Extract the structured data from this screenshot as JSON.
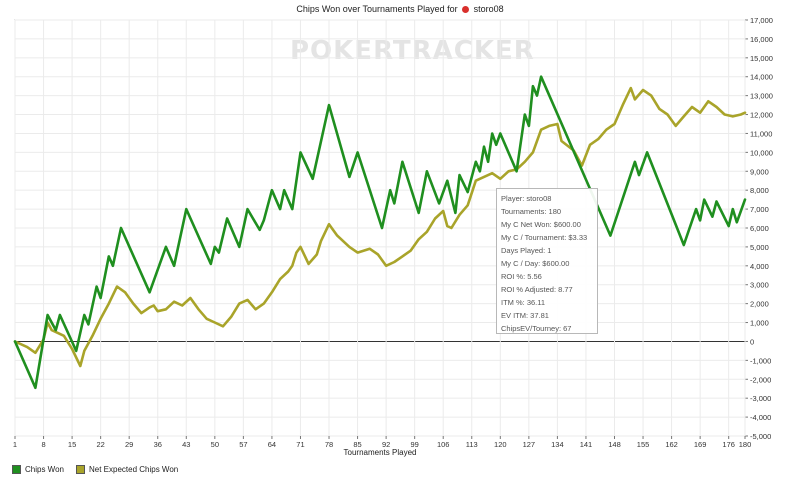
{
  "title": {
    "prefix": "Chips Won over Tournaments Played for",
    "player": "storo08",
    "player_icon": "poker-chip-icon"
  },
  "watermark": "POKERTRACKER",
  "colors": {
    "chips_won": "#1f8f1f",
    "net_expected": "#a9a42a",
    "grid": "#ebebeb",
    "zero_line": "#333333"
  },
  "tooltip": {
    "rows": [
      "Player: storo08",
      "Tournaments: 180",
      "My C Net Won: $600.00",
      "My C / Tournament: $3.33",
      "Days Played: 1",
      "My C / Day: $600.00",
      "ROI %: 5.56",
      "ROI % Adjusted: 8.77",
      "ITM %: 36.11",
      "EV ITM: 37.81",
      "ChipsEV/Tourney: 67"
    ]
  },
  "legend": [
    {
      "label": "Chips Won",
      "color": "#1f8f1f"
    },
    {
      "label": "Net Expected Chips Won",
      "color": "#a9a42a"
    }
  ],
  "chart_data": {
    "type": "line",
    "title": "Chips Won over Tournaments Played for storo08",
    "xlabel": "Tournaments Played",
    "ylabel": "",
    "xlim": [
      1,
      180
    ],
    "ylim": [
      -5000,
      17000
    ],
    "x_ticks": [
      1,
      8,
      15,
      22,
      29,
      36,
      43,
      50,
      57,
      64,
      71,
      78,
      85,
      92,
      99,
      106,
      113,
      120,
      127,
      134,
      141,
      148,
      155,
      162,
      169,
      176,
      180
    ],
    "y_ticks": [
      {
        "value": 17000,
        "label": "17,000"
      },
      {
        "value": 16000,
        "label": "16,000"
      },
      {
        "value": 15000,
        "label": "15,000"
      },
      {
        "value": 14000,
        "label": "14,000"
      },
      {
        "value": 13000,
        "label": "13,000"
      },
      {
        "value": 12000,
        "label": "12,000"
      },
      {
        "value": 11000,
        "label": "11,000"
      },
      {
        "value": 10000,
        "label": "10,000"
      },
      {
        "value": 9000,
        "label": "9,000"
      },
      {
        "value": 8000,
        "label": "8,000"
      },
      {
        "value": 7000,
        "label": "7,000"
      },
      {
        "value": 6000,
        "label": "6,000"
      },
      {
        "value": 5000,
        "label": "5,000"
      },
      {
        "value": 4000,
        "label": "4,000"
      },
      {
        "value": 3000,
        "label": "3,000"
      },
      {
        "value": 2000,
        "label": "2,000"
      },
      {
        "value": 1000,
        "label": "1,000"
      },
      {
        "value": 0,
        "label": "0"
      },
      {
        "value": -1000,
        "label": "-1,000"
      },
      {
        "value": -2000,
        "label": "-2,000"
      },
      {
        "value": -3000,
        "label": "-3,000"
      },
      {
        "value": -4000,
        "label": "-4,000"
      },
      {
        "value": -5000,
        "label": "-5,000"
      }
    ],
    "grid": true,
    "legend_position": "bottom-left",
    "series": [
      {
        "name": "Chips Won",
        "color": "#1f8f1f",
        "points": [
          [
            1,
            0
          ],
          [
            6,
            -2450
          ],
          [
            9,
            1400
          ],
          [
            11,
            600
          ],
          [
            12,
            1400
          ],
          [
            16,
            -500
          ],
          [
            18,
            1400
          ],
          [
            19,
            900
          ],
          [
            21,
            2900
          ],
          [
            22,
            2300
          ],
          [
            24,
            4500
          ],
          [
            25,
            4000
          ],
          [
            27,
            6000
          ],
          [
            34,
            2600
          ],
          [
            38,
            5000
          ],
          [
            40,
            4000
          ],
          [
            43,
            7000
          ],
          [
            49,
            4100
          ],
          [
            50,
            5000
          ],
          [
            51,
            4700
          ],
          [
            53,
            6500
          ],
          [
            56,
            5000
          ],
          [
            58,
            7000
          ],
          [
            61,
            5900
          ],
          [
            62,
            6400
          ],
          [
            64,
            8000
          ],
          [
            66,
            7000
          ],
          [
            67,
            8000
          ],
          [
            69,
            7000
          ],
          [
            71,
            10000
          ],
          [
            74,
            8600
          ],
          [
            78,
            12500
          ],
          [
            83,
            8700
          ],
          [
            85,
            10000
          ],
          [
            91,
            6000
          ],
          [
            93,
            8000
          ],
          [
            94,
            7300
          ],
          [
            96,
            9500
          ],
          [
            100,
            6800
          ],
          [
            102,
            9000
          ],
          [
            105,
            7300
          ],
          [
            107,
            8500
          ],
          [
            109,
            6800
          ],
          [
            110,
            8800
          ],
          [
            112,
            7900
          ],
          [
            114,
            9500
          ],
          [
            115,
            9000
          ],
          [
            116,
            10300
          ],
          [
            117,
            9500
          ],
          [
            118,
            11000
          ],
          [
            119,
            10400
          ],
          [
            120,
            11000
          ],
          [
            124,
            9000
          ],
          [
            126,
            12000
          ],
          [
            127,
            11400
          ],
          [
            128,
            13500
          ],
          [
            129,
            13000
          ],
          [
            130,
            14000
          ],
          [
            147,
            5600
          ],
          [
            153,
            9500
          ],
          [
            154,
            8800
          ],
          [
            156,
            10000
          ],
          [
            165,
            5100
          ],
          [
            168,
            7000
          ],
          [
            169,
            6400
          ],
          [
            170,
            7500
          ],
          [
            172,
            6600
          ],
          [
            173,
            7400
          ],
          [
            176,
            6100
          ],
          [
            177,
            7000
          ],
          [
            178,
            6300
          ],
          [
            180,
            7500
          ]
        ]
      },
      {
        "name": "Net Expected Chips Won",
        "color": "#a9a42a",
        "points": [
          [
            1,
            0
          ],
          [
            4,
            -300
          ],
          [
            6,
            -600
          ],
          [
            8,
            100
          ],
          [
            9,
            1000
          ],
          [
            10,
            600
          ],
          [
            13,
            300
          ],
          [
            15,
            -400
          ],
          [
            17,
            -1300
          ],
          [
            18,
            -500
          ],
          [
            20,
            300
          ],
          [
            22,
            1200
          ],
          [
            24,
            2000
          ],
          [
            26,
            2900
          ],
          [
            28,
            2600
          ],
          [
            30,
            2000
          ],
          [
            32,
            1500
          ],
          [
            34,
            1800
          ],
          [
            35,
            1900
          ],
          [
            36,
            1600
          ],
          [
            38,
            1700
          ],
          [
            40,
            2100
          ],
          [
            42,
            1900
          ],
          [
            44,
            2300
          ],
          [
            46,
            1700
          ],
          [
            48,
            1200
          ],
          [
            50,
            1000
          ],
          [
            52,
            800
          ],
          [
            54,
            1300
          ],
          [
            56,
            2000
          ],
          [
            58,
            2200
          ],
          [
            60,
            1700
          ],
          [
            62,
            2000
          ],
          [
            64,
            2600
          ],
          [
            66,
            3300
          ],
          [
            68,
            3700
          ],
          [
            69,
            4000
          ],
          [
            70,
            4700
          ],
          [
            71,
            5000
          ],
          [
            73,
            4100
          ],
          [
            75,
            4600
          ],
          [
            76,
            5300
          ],
          [
            78,
            6200
          ],
          [
            80,
            5600
          ],
          [
            83,
            5000
          ],
          [
            85,
            4700
          ],
          [
            88,
            4900
          ],
          [
            90,
            4600
          ],
          [
            92,
            4000
          ],
          [
            94,
            4200
          ],
          [
            96,
            4500
          ],
          [
            98,
            4800
          ],
          [
            100,
            5400
          ],
          [
            102,
            5800
          ],
          [
            104,
            6500
          ],
          [
            106,
            6900
          ],
          [
            107,
            6100
          ],
          [
            108,
            6000
          ],
          [
            110,
            6700
          ],
          [
            112,
            7200
          ],
          [
            114,
            8500
          ],
          [
            116,
            8700
          ],
          [
            118,
            8900
          ],
          [
            120,
            8600
          ],
          [
            122,
            9000
          ],
          [
            124,
            9100
          ],
          [
            126,
            9500
          ],
          [
            128,
            10000
          ],
          [
            130,
            11200
          ],
          [
            132,
            11400
          ],
          [
            134,
            11500
          ],
          [
            135,
            10600
          ],
          [
            138,
            10100
          ],
          [
            140,
            9300
          ],
          [
            142,
            10400
          ],
          [
            144,
            10700
          ],
          [
            146,
            11200
          ],
          [
            148,
            11500
          ],
          [
            150,
            12500
          ],
          [
            152,
            13400
          ],
          [
            153,
            12800
          ],
          [
            155,
            13300
          ],
          [
            157,
            13000
          ],
          [
            159,
            12300
          ],
          [
            161,
            12000
          ],
          [
            163,
            11400
          ],
          [
            165,
            11900
          ],
          [
            167,
            12400
          ],
          [
            169,
            12100
          ],
          [
            171,
            12700
          ],
          [
            173,
            12400
          ],
          [
            175,
            12000
          ],
          [
            177,
            11900
          ],
          [
            179,
            12000
          ],
          [
            180,
            12100
          ]
        ]
      }
    ]
  }
}
